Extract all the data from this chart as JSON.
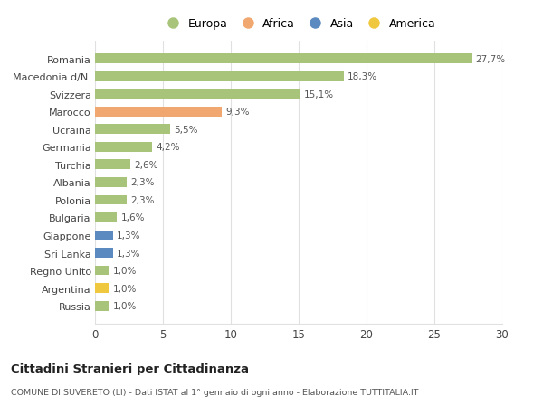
{
  "countries": [
    "Romania",
    "Macedonia d/N.",
    "Svizzera",
    "Marocco",
    "Ucraina",
    "Germania",
    "Turchia",
    "Albania",
    "Polonia",
    "Bulgaria",
    "Giappone",
    "Sri Lanka",
    "Regno Unito",
    "Argentina",
    "Russia"
  ],
  "values": [
    27.7,
    18.3,
    15.1,
    9.3,
    5.5,
    4.2,
    2.6,
    2.3,
    2.3,
    1.6,
    1.3,
    1.3,
    1.0,
    1.0,
    1.0
  ],
  "labels": [
    "27,7%",
    "18,3%",
    "15,1%",
    "9,3%",
    "5,5%",
    "4,2%",
    "2,6%",
    "2,3%",
    "2,3%",
    "1,6%",
    "1,3%",
    "1,3%",
    "1,0%",
    "1,0%",
    "1,0%"
  ],
  "continents": [
    "Europa",
    "Europa",
    "Europa",
    "Africa",
    "Europa",
    "Europa",
    "Europa",
    "Europa",
    "Europa",
    "Europa",
    "Asia",
    "Asia",
    "Europa",
    "America",
    "Europa"
  ],
  "colors": {
    "Europa": "#a8c47a",
    "Africa": "#f0a870",
    "Asia": "#5b8ac0",
    "America": "#f0c840"
  },
  "title": "Cittadini Stranieri per Cittadinanza",
  "subtitle": "COMUNE DI SUVERETO (LI) - Dati ISTAT al 1° gennaio di ogni anno - Elaborazione TUTTITALIA.IT",
  "xlim": [
    0,
    30
  ],
  "xticks": [
    0,
    5,
    10,
    15,
    20,
    25,
    30
  ],
  "background_color": "#ffffff",
  "grid_color": "#e0e0e0",
  "bar_height": 0.55
}
